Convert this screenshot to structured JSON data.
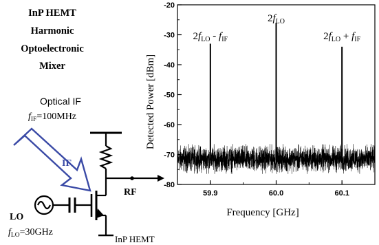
{
  "diagram": {
    "title_lines": [
      "InP HEMT",
      "Harmonic",
      "Optoelectronic",
      "Mixer"
    ],
    "optical_if_label": "Optical IF",
    "fif_prefix": "f",
    "fif_sub": "IF",
    "fif_value": "=100MHz",
    "if_arrow_label": "IF",
    "rf_label": "RF",
    "lo_label": "LO",
    "flo_prefix": "f",
    "flo_sub": "LO",
    "flo_value": "=30GHz",
    "device_label": "InP HEMT",
    "colors": {
      "if_arrow": "#3a4aa6",
      "if_text": "#3a4aa6",
      "lines": "#000000"
    }
  },
  "chart_data": {
    "type": "line",
    "xlabel": "Frequency [GHz]",
    "ylabel": "Detected Power [dBm]",
    "xlim": [
      59.85,
      60.15
    ],
    "ylim": [
      -80,
      -20
    ],
    "xticks": [
      59.9,
      60.0,
      60.1
    ],
    "xtick_labels": [
      "59.9",
      "60.0",
      "60.1"
    ],
    "yticks": [
      -80,
      -70,
      -60,
      -50,
      -40,
      -30,
      -20
    ],
    "ytick_labels": [
      "-80",
      "-70",
      "-60",
      "-50",
      "-40",
      "-30",
      "-20"
    ],
    "grid": false,
    "noise_floor": {
      "min_dbm": -76,
      "max_dbm": -67
    },
    "peaks": [
      {
        "x": 59.9,
        "y": -33,
        "label_main": "2f",
        "label_sub": "LO",
        "label_op": " - ",
        "label_main2": "f",
        "label_sub2": "IF"
      },
      {
        "x": 60.0,
        "y": -26,
        "label_main": "2f",
        "label_sub": "LO"
      },
      {
        "x": 60.1,
        "y": -34,
        "label_main": "2f",
        "label_sub": "LO",
        "label_op": " + ",
        "label_main2": "f",
        "label_sub2": "IF"
      }
    ]
  }
}
